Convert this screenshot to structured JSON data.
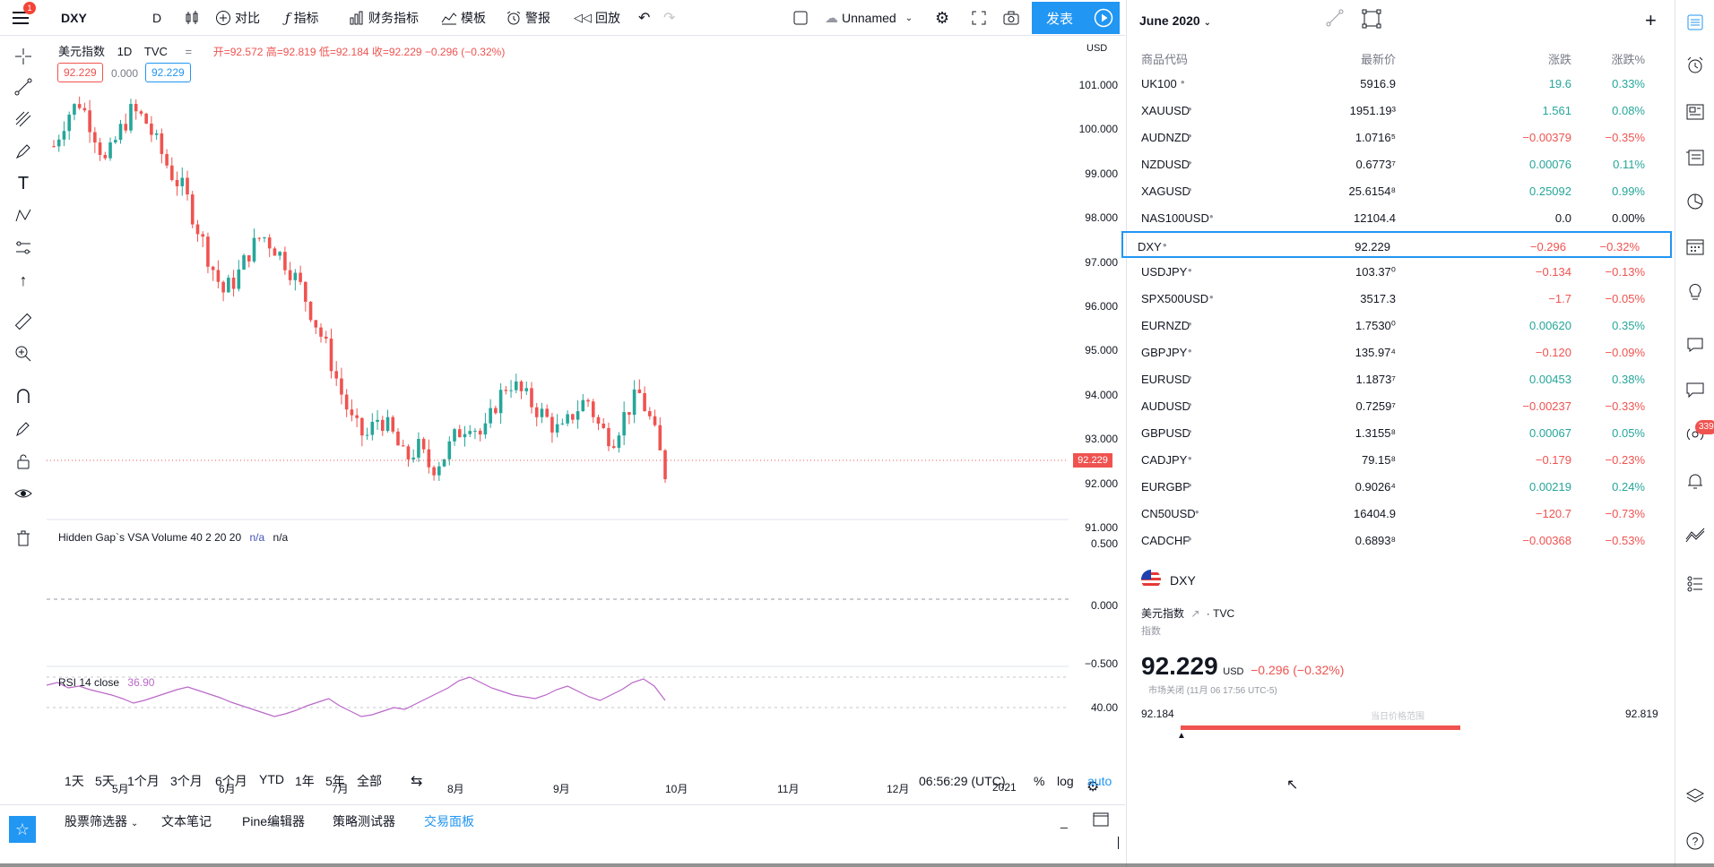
{
  "topbar": {
    "menu_badge": "1",
    "symbol": "DXY",
    "interval": "D",
    "compare": "对比",
    "indicators": "指标",
    "financials": "财务指标",
    "templates": "模板",
    "alert": "警报",
    "replay": "回放",
    "layout_name": "Unnamed",
    "publish": "发表"
  },
  "legend": {
    "name": "美元指数",
    "interval": "1D",
    "source": "TVC",
    "ohlc": "开=92.572 高=92.819 低=92.184 收=92.229 −0.296 (−0.32%)",
    "price_tag_left": "92.229",
    "spread": "0.000",
    "price_tag_right": "92.229",
    "currency": "USD"
  },
  "price_axis": {
    "labels": [
      "101.000",
      "100.000",
      "99.000",
      "98.000",
      "97.000",
      "96.000",
      "95.000",
      "94.000",
      "93.000",
      "92.000",
      "91.000"
    ],
    "current": "92.229",
    "vol_labels": [
      "0.500",
      "0.000",
      "−0.500"
    ],
    "rsi_label": "40.00"
  },
  "volume_legend": {
    "name": "Hidden Gap`s VSA Volume 40 2 20 20",
    "v1": "n/a",
    "v2": "n/a"
  },
  "rsi_legend": {
    "name": "RSI 14 close",
    "value": "36.90"
  },
  "time_axis": [
    "5月",
    "6月",
    "7月",
    "8月",
    "9月",
    "10月",
    "11月",
    "12月",
    "2021"
  ],
  "ranges": [
    "1天",
    "5天",
    "1个月",
    "3个月",
    "6个月",
    "YTD",
    "1年",
    "5年",
    "全部"
  ],
  "footer": {
    "clock": "06:56:29 (UTC)",
    "percent": "%",
    "log": "log",
    "auto": "auto"
  },
  "bottom_tabs": [
    "股票筛选器",
    "文本笔记",
    "Pine编辑器",
    "策略测试器",
    "交易面板"
  ],
  "watchlist": {
    "title": "June 2020",
    "headers": {
      "symbol": "商品代码",
      "last": "最新价",
      "chg": "涨跌",
      "pct": "涨跌%"
    },
    "rows": [
      {
        "sym": "UK100",
        "last": "5916.9",
        "chg": "19.6",
        "pct": "0.33%",
        "dir": "up"
      },
      {
        "sym": "XAUUSD",
        "last": "1951.19³",
        "chg": "1.561",
        "pct": "0.08%",
        "dir": "up"
      },
      {
        "sym": "AUDNZD",
        "last": "1.0716⁵",
        "chg": "−0.00379",
        "pct": "−0.35%",
        "dir": "down"
      },
      {
        "sym": "NZDUSD",
        "last": "0.6773⁷",
        "chg": "0.00076",
        "pct": "0.11%",
        "dir": "up"
      },
      {
        "sym": "XAGUSD",
        "last": "25.6154⁸",
        "chg": "0.25092",
        "pct": "0.99%",
        "dir": "up"
      },
      {
        "sym": "NAS100USD",
        "last": "12104.4",
        "chg": "0.0",
        "pct": "0.00%",
        "dir": "neutral"
      },
      {
        "sym": "DXY",
        "last": "92.229",
        "chg": "−0.296",
        "pct": "−0.32%",
        "dir": "down"
      },
      {
        "sym": "USDJPY",
        "last": "103.37⁰",
        "chg": "−0.134",
        "pct": "−0.13%",
        "dir": "down"
      },
      {
        "sym": "SPX500USD",
        "last": "3517.3",
        "chg": "−1.7",
        "pct": "−0.05%",
        "dir": "down"
      },
      {
        "sym": "EURNZD",
        "last": "1.7530⁰",
        "chg": "0.00620",
        "pct": "0.35%",
        "dir": "up"
      },
      {
        "sym": "GBPJPY",
        "last": "135.97⁴",
        "chg": "−0.120",
        "pct": "−0.09%",
        "dir": "down"
      },
      {
        "sym": "EURUSD",
        "last": "1.1873⁷",
        "chg": "0.00453",
        "pct": "0.38%",
        "dir": "up"
      },
      {
        "sym": "AUDUSD",
        "last": "0.7259⁷",
        "chg": "−0.00237",
        "pct": "−0.33%",
        "dir": "down"
      },
      {
        "sym": "GBPUSD",
        "last": "1.3155⁸",
        "chg": "0.00067",
        "pct": "0.05%",
        "dir": "up"
      },
      {
        "sym": "CADJPY",
        "last": "79.15⁸",
        "chg": "−0.179",
        "pct": "−0.23%",
        "dir": "down"
      },
      {
        "sym": "EURGBP",
        "last": "0.9026⁴",
        "chg": "0.00219",
        "pct": "0.24%",
        "dir": "up"
      },
      {
        "sym": "CN50USD",
        "last": "16404.9",
        "chg": "−120.7",
        "pct": "−0.73%",
        "dir": "down"
      },
      {
        "sym": "CADCHF",
        "last": "0.6893⁸",
        "chg": "−0.00368",
        "pct": "−0.53%",
        "dir": "down"
      }
    ]
  },
  "details": {
    "symbol": "DXY",
    "name": "美元指数",
    "exchange": "TVC",
    "type": "指数",
    "price": "92.229",
    "currency": "USD",
    "change": "−0.296 (−0.32%)",
    "market_status": "市场关闭 (11月 06 17:56 UTC-5)",
    "low": "92.184",
    "range_label": "当日价格范围",
    "high": "92.819"
  },
  "sidebar": {
    "badge": "339"
  },
  "colors": {
    "accent": "#2196f3",
    "up": "#26a69a",
    "down": "#ef5350",
    "rsi": "#ba68c8"
  }
}
